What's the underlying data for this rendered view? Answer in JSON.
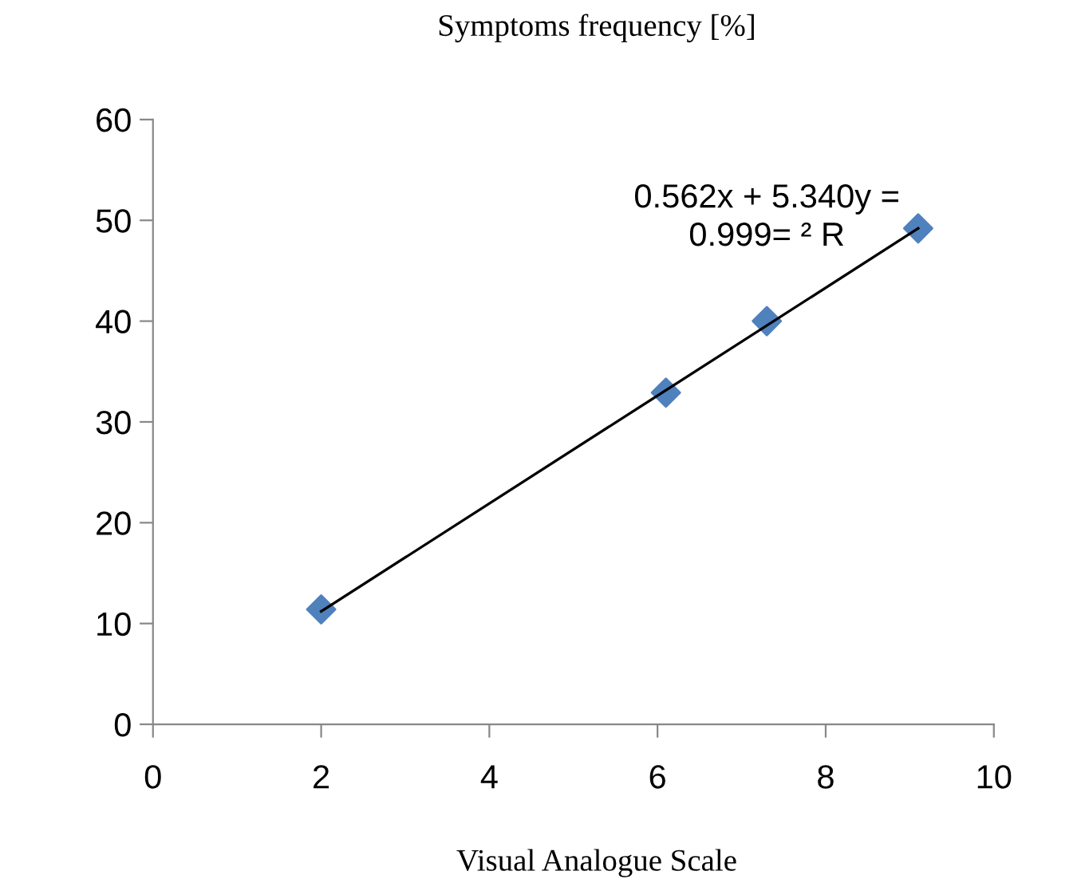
{
  "chart_data": {
    "type": "scatter",
    "title": "Symptoms frequency [%]",
    "xlabel": "Visual Analogue Scale",
    "series": [
      {
        "color": "#4f81bd",
        "marker": "diamond",
        "x": [
          2.0,
          6.1,
          7.3,
          9.1
        ],
        "values": [
          11.4,
          32.9,
          40.0,
          49.2
        ]
      },
      {
        "type": "line",
        "color": "#000000",
        "marker": "none",
        "x": [
          2.0,
          9.1
        ],
        "values": [
          11.2,
          49.2
        ]
      }
    ],
    "annotations": [
      "0.562x + 5.340y =\n0.999= ² R"
    ],
    "xlim": [
      0,
      10
    ],
    "xticks": [
      0,
      2,
      4,
      6,
      8,
      10
    ],
    "ylim": [
      0,
      60
    ],
    "yticks": [
      0,
      10,
      20,
      30,
      40,
      50,
      60
    ],
    "grid": false
  }
}
